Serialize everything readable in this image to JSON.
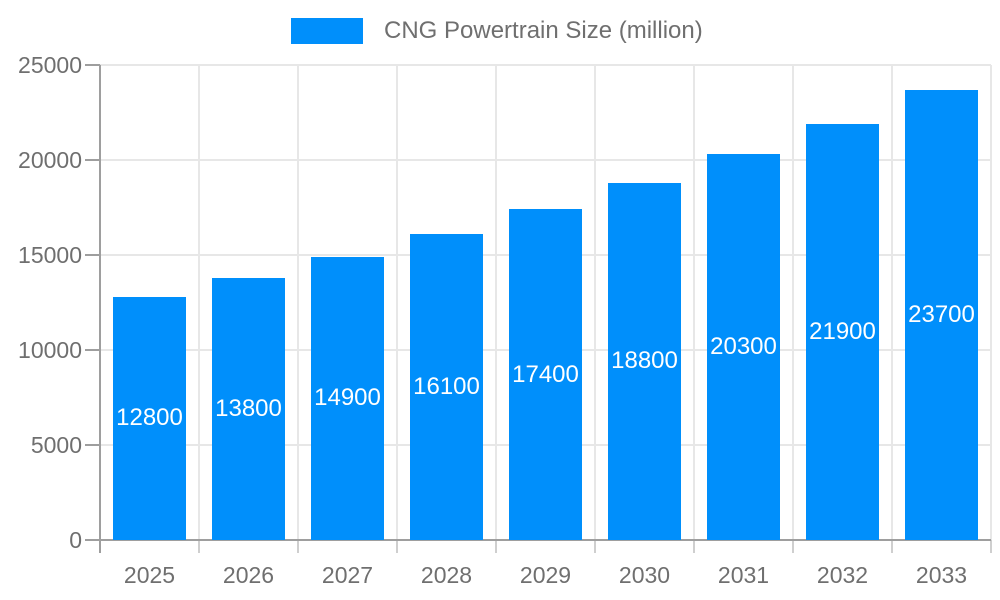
{
  "legend": {
    "label": "CNG Powertrain Size (million)"
  },
  "colors": {
    "bar": "#008FFB",
    "grid_line": "#e7e7e7",
    "axis_line": "#9e9e9e",
    "x_tick": "#cfcfcf",
    "axis_label": "#6f6f6f",
    "value_label": "#ffffff",
    "background": "#ffffff"
  },
  "chart_data": {
    "type": "bar",
    "title": "",
    "categories": [
      "2025",
      "2026",
      "2027",
      "2028",
      "2029",
      "2030",
      "2031",
      "2032",
      "2033"
    ],
    "series": [
      {
        "name": "CNG Powertrain Size (million)",
        "values": [
          12800,
          13800,
          14900,
          16100,
          17400,
          18800,
          20300,
          21900,
          23700
        ]
      }
    ],
    "xlabel": "",
    "ylabel": "",
    "ylim": [
      0,
      25000
    ],
    "yticks": [
      0,
      5000,
      10000,
      15000,
      20000,
      25000
    ],
    "grid": true,
    "legend_position": "top",
    "value_labels": "inside-middle"
  }
}
